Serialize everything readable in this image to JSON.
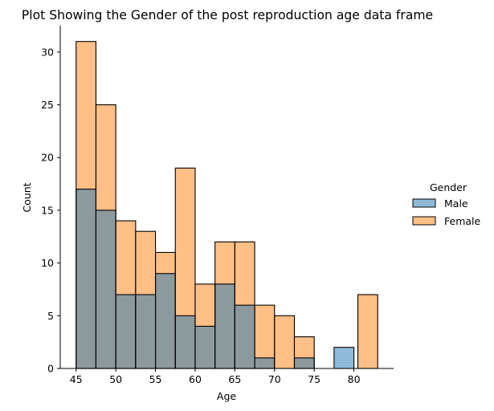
{
  "chart_data": {
    "type": "bar",
    "title": "Plot Showing the Gender of the post reproduction age data frame",
    "xlabel": "Age",
    "ylabel": "Count",
    "xlim": [
      43,
      85
    ],
    "ylim": [
      0,
      32.5
    ],
    "xticks": [
      45,
      50,
      55,
      60,
      65,
      70,
      75,
      80
    ],
    "yticks": [
      0,
      5,
      10,
      15,
      20,
      25,
      30
    ],
    "bin_width": 2.5,
    "bin_starts": [
      45,
      47.5,
      50,
      52.5,
      55,
      57.5,
      60,
      62.5,
      65,
      67.5,
      70,
      72.5,
      75,
      77.5,
      80.5
    ],
    "legend_title": "Gender",
    "legend_position": "right",
    "series": [
      {
        "name": "Male",
        "color": "#1f77b4",
        "values": [
          17,
          15,
          7,
          7,
          9,
          5,
          4,
          8,
          6,
          1,
          0,
          1,
          0,
          2,
          0
        ]
      },
      {
        "name": "Female",
        "color": "#ff7f0e",
        "values": [
          31,
          25,
          14,
          13,
          11,
          19,
          8,
          12,
          12,
          6,
          5,
          3,
          0,
          0,
          7
        ]
      }
    ],
    "overlap_color": "#8c9a9e"
  }
}
